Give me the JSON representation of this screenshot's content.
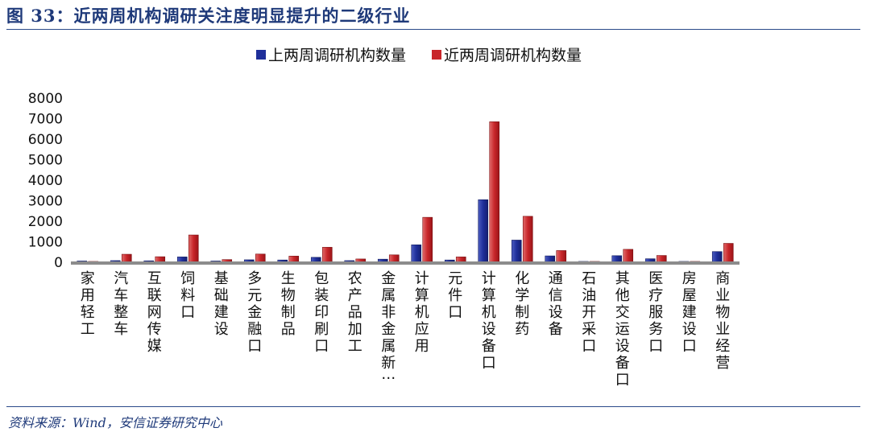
{
  "header": {
    "title": "图 33：近两周机构调研关注度明显提升的二级行业"
  },
  "footer": {
    "source": "资料来源：Wind，安信证券研究中心"
  },
  "colors": {
    "series_prev": "#1f2f9a",
    "series_recent": "#c8262a",
    "title": "#1f3a7a"
  },
  "chart_data": {
    "type": "bar",
    "title": "",
    "xlabel": "",
    "ylabel": "",
    "ylim": [
      0,
      8000
    ],
    "yticks": [
      0,
      1000,
      2000,
      3000,
      4000,
      5000,
      6000,
      7000,
      8000
    ],
    "grid": false,
    "legend_position": "top",
    "categories": [
      "家用轻工",
      "汽车整车",
      "互联网传媒",
      "饲料口",
      "基础建设",
      "多元金融口",
      "生物制品",
      "包装印刷口",
      "农产品加工",
      "金属非金属新…",
      "计算机应用",
      "元件口",
      "计算机设备口",
      "化学制药",
      "通信设备",
      "石油开采口",
      "其他交运设备口",
      "医疗服务口",
      "房屋建设口",
      "商业物业经营"
    ],
    "series": [
      {
        "name": "上两周调研机构数量",
        "color": "#1f2f9a",
        "values": [
          60,
          80,
          70,
          260,
          60,
          120,
          110,
          240,
          80,
          150,
          850,
          110,
          3050,
          1080,
          310,
          40,
          320,
          170,
          40,
          520
        ]
      },
      {
        "name": "近两周调研机构数量",
        "color": "#c8262a",
        "values": [
          40,
          390,
          270,
          1330,
          130,
          400,
          300,
          730,
          160,
          360,
          2190,
          260,
          6850,
          2240,
          570,
          40,
          630,
          330,
          40,
          920
        ]
      }
    ]
  }
}
